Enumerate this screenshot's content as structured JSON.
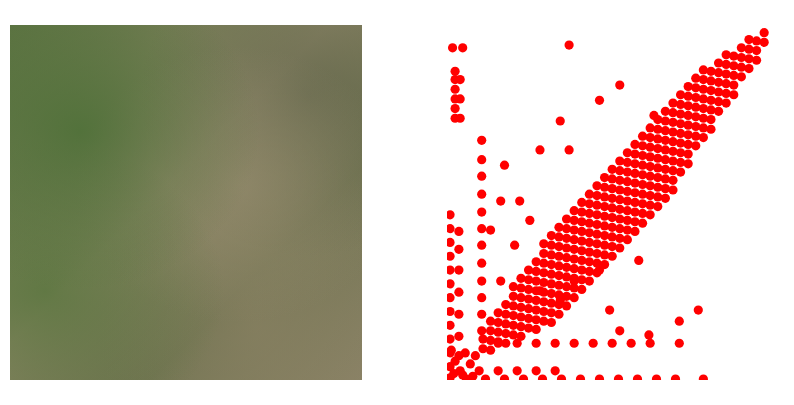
{
  "chart_data": {
    "type": "scatter",
    "color": "#ff0000",
    "marker": "circle",
    "tick_labels": false,
    "grid": false,
    "xlim": [
      0,
      255
    ],
    "ylim": [
      0,
      255
    ],
    "x": [
      28,
      28,
      34,
      34,
      34,
      34,
      40,
      40,
      40,
      40,
      46,
      46,
      46,
      46,
      46,
      52,
      52,
      52,
      52,
      52,
      52,
      58,
      58,
      58,
      58,
      58,
      58,
      58,
      64,
      64,
      64,
      64,
      64,
      64,
      64,
      70,
      70,
      70,
      70,
      70,
      70,
      70,
      70,
      76,
      76,
      76,
      76,
      76,
      76,
      76,
      76,
      76,
      82,
      82,
      82,
      82,
      82,
      82,
      82,
      82,
      82,
      82,
      88,
      88,
      88,
      88,
      88,
      88,
      88,
      88,
      88,
      88,
      94,
      94,
      94,
      94,
      94,
      94,
      94,
      94,
      94,
      94,
      100,
      100,
      100,
      100,
      100,
      100,
      100,
      100,
      100,
      100,
      106,
      106,
      106,
      106,
      106,
      106,
      106,
      106,
      106,
      106,
      112,
      112,
      112,
      112,
      112,
      112,
      112,
      112,
      112,
      112,
      118,
      118,
      118,
      118,
      118,
      118,
      118,
      118,
      118,
      118,
      124,
      124,
      124,
      124,
      124,
      124,
      124,
      124,
      124,
      124,
      130,
      130,
      130,
      130,
      130,
      130,
      130,
      130,
      130,
      130,
      136,
      136,
      136,
      136,
      136,
      136,
      136,
      136,
      136,
      136,
      142,
      142,
      142,
      142,
      142,
      142,
      142,
      142,
      142,
      142,
      148,
      148,
      148,
      148,
      148,
      148,
      148,
      148,
      148,
      148,
      154,
      154,
      154,
      154,
      154,
      154,
      154,
      154,
      154,
      154,
      160,
      160,
      160,
      160,
      160,
      160,
      160,
      160,
      160,
      160,
      166,
      166,
      166,
      166,
      166,
      166,
      166,
      166,
      166,
      166,
      172,
      172,
      172,
      172,
      172,
      172,
      172,
      172,
      172,
      172,
      178,
      178,
      178,
      178,
      178,
      178,
      178,
      178,
      178,
      178,
      184,
      184,
      184,
      184,
      184,
      184,
      184,
      184,
      184,
      190,
      190,
      190,
      190,
      190,
      190,
      190,
      190,
      190,
      196,
      196,
      196,
      196,
      196,
      196,
      196,
      196,
      202,
      202,
      202,
      202,
      202,
      202,
      202,
      202,
      208,
      208,
      208,
      208,
      208,
      208,
      208,
      214,
      214,
      214,
      214,
      214,
      214,
      220,
      220,
      220,
      220,
      220,
      220,
      226,
      226,
      226,
      226,
      226,
      232,
      232,
      232,
      232,
      238,
      238,
      238,
      238,
      244,
      244,
      244,
      250,
      250,
      4,
      12,
      96,
      6,
      6,
      6,
      6,
      6,
      6,
      10,
      10,
      10,
      2,
      2,
      2,
      2,
      2,
      2,
      2,
      2,
      2,
      2,
      2,
      2,
      2,
      9,
      9,
      9,
      9,
      9,
      9,
      9,
      27,
      27,
      27,
      27,
      27,
      27,
      27,
      27,
      27,
      27,
      27,
      27,
      15,
      30,
      45,
      60,
      75,
      90,
      105,
      120,
      135,
      150,
      165,
      180,
      202,
      10,
      25,
      40,
      55,
      70,
      85,
      40,
      55,
      70,
      85,
      100,
      115,
      130,
      145,
      160,
      183,
      5,
      12,
      18,
      6,
      14,
      3,
      20,
      22,
      45,
      57,
      53,
      73,
      89,
      128,
      136,
      159,
      183,
      198,
      73,
      89,
      120,
      136,
      34,
      42,
      120,
      151,
      42,
      65,
      96,
      163,
      100
    ],
    "values": [
      23,
      30,
      22,
      29,
      36,
      43,
      28,
      35,
      42,
      49,
      27,
      34,
      41,
      48,
      55,
      33,
      40,
      47,
      54,
      61,
      68,
      32,
      39,
      46,
      53,
      60,
      67,
      74,
      38,
      45,
      52,
      59,
      66,
      73,
      80,
      37,
      44,
      51,
      58,
      65,
      72,
      79,
      86,
      43,
      50,
      57,
      64,
      71,
      78,
      85,
      92,
      99,
      42,
      49,
      56,
      63,
      70,
      77,
      84,
      91,
      98,
      105,
      48,
      55,
      62,
      69,
      76,
      83,
      90,
      97,
      104,
      111,
      54,
      61,
      68,
      75,
      82,
      89,
      96,
      103,
      110,
      117,
      60,
      67,
      74,
      81,
      88,
      95,
      102,
      109,
      116,
      123,
      66,
      73,
      80,
      87,
      94,
      101,
      108,
      115,
      122,
      129,
      72,
      79,
      86,
      93,
      100,
      107,
      114,
      121,
      128,
      135,
      78,
      85,
      92,
      99,
      106,
      113,
      120,
      127,
      134,
      141,
      84,
      91,
      98,
      105,
      112,
      119,
      126,
      133,
      140,
      147,
      90,
      97,
      104,
      111,
      118,
      125,
      132,
      139,
      146,
      153,
      96,
      103,
      110,
      117,
      124,
      131,
      138,
      145,
      152,
      159,
      102,
      109,
      116,
      123,
      130,
      137,
      144,
      151,
      158,
      165,
      108,
      115,
      122,
      129,
      136,
      143,
      150,
      157,
      164,
      171,
      114,
      121,
      128,
      135,
      142,
      149,
      156,
      163,
      170,
      177,
      120,
      127,
      134,
      141,
      148,
      155,
      162,
      169,
      176,
      183,
      126,
      133,
      140,
      147,
      154,
      161,
      168,
      175,
      182,
      189,
      132,
      139,
      146,
      153,
      160,
      167,
      174,
      181,
      188,
      195,
      138,
      145,
      152,
      159,
      166,
      173,
      180,
      187,
      194,
      201,
      151,
      158,
      165,
      172,
      179,
      186,
      193,
      200,
      207,
      157,
      164,
      171,
      178,
      185,
      192,
      199,
      206,
      213,
      170,
      177,
      184,
      191,
      198,
      205,
      212,
      219,
      176,
      183,
      190,
      197,
      204,
      211,
      218,
      225,
      182,
      189,
      196,
      203,
      210,
      217,
      224,
      195,
      202,
      209,
      216,
      223,
      230,
      201,
      208,
      215,
      222,
      229,
      236,
      207,
      214,
      221,
      228,
      235,
      220,
      227,
      234,
      241,
      226,
      233,
      240,
      247,
      232,
      239,
      246,
      245,
      252,
      241,
      241,
      243,
      224,
      218,
      211,
      204,
      197,
      190,
      218,
      204,
      190,
      120,
      110,
      100,
      90,
      80,
      70,
      60,
      50,
      40,
      30,
      20,
      10,
      2,
      108,
      95,
      80,
      64,
      48,
      32,
      18,
      174,
      160,
      148,
      135,
      122,
      110,
      98,
      85,
      72,
      60,
      48,
      36,
      1,
      1,
      1,
      1,
      1,
      1,
      1,
      1,
      1,
      1,
      1,
      1,
      1,
      7,
      7,
      7,
      7,
      7,
      7,
      27,
      27,
      27,
      27,
      27,
      27,
      27,
      27,
      27,
      27,
      5,
      4,
      12,
      14,
      20,
      22,
      3,
      18,
      156,
      130,
      98,
      65,
      58,
      51,
      36,
      33,
      43,
      51,
      167,
      188,
      203,
      214,
      109,
      72,
      80,
      87,
      130,
      116,
      167,
      192,
      72
    ]
  }
}
